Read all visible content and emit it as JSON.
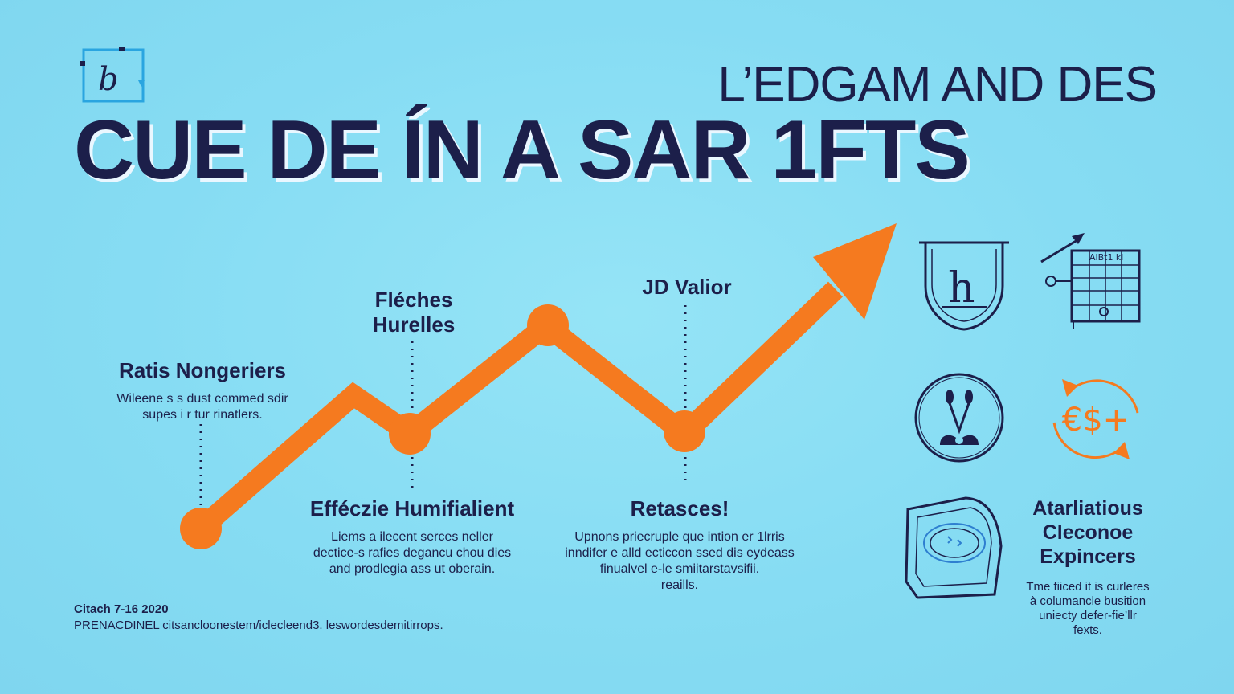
{
  "header": {
    "kicker": "L’EDGAM AND DES",
    "headline": "CUE DE ÍN A SAR 1FTS"
  },
  "steps": [
    {
      "title": "Ratis Nongeriers",
      "body": [
        "Wileene s s dust commed sdir",
        "supes i r tur rinatlers."
      ]
    },
    {
      "title": "Fléches Hurelles",
      "title_lines": [
        "Fléches",
        "Hurelles"
      ],
      "body": []
    },
    {
      "title": "Efféczie Humifialient",
      "body": [
        "Liems a ilecent serces neller",
        "dectice-s rafies degancu chou dies",
        "and prodlegia ass ut oberain."
      ]
    },
    {
      "title": "JD Valior",
      "body": []
    },
    {
      "title": "Retasces!",
      "body": [
        "Upnons priecruple que intion er 1lrris",
        "inndifer e alld ecticcon ssed dis eydeass",
        "finualvel e-le smiitarstavsifii.",
        "reaills."
      ]
    }
  ],
  "side_panel": {
    "title_lines": [
      "Atarliatious",
      "Cleconoe",
      "Expincers"
    ],
    "body": [
      "Tme fiiced it is curleres",
      "à columancle busition",
      "uniecty defer-fie’llr",
      "fexts."
    ],
    "icons": [
      "shield-h-icon",
      "grid-chart-arrow-icon",
      "circle-figure-icon",
      "currency-exchange-icon",
      "tilted-card-icon"
    ],
    "currency_label": "€$+",
    "shield_letter": "h",
    "grid_label": "AlBt1 kl"
  },
  "footer": {
    "citation": "Citach 7-16 2020",
    "source": "PRENACDINEL citsancloonestem/iclecleend3. leswordesdemitirrops."
  },
  "colors": {
    "background": "#86dcf3",
    "navy": "#1c1f4a",
    "orange": "#f57a1f"
  }
}
